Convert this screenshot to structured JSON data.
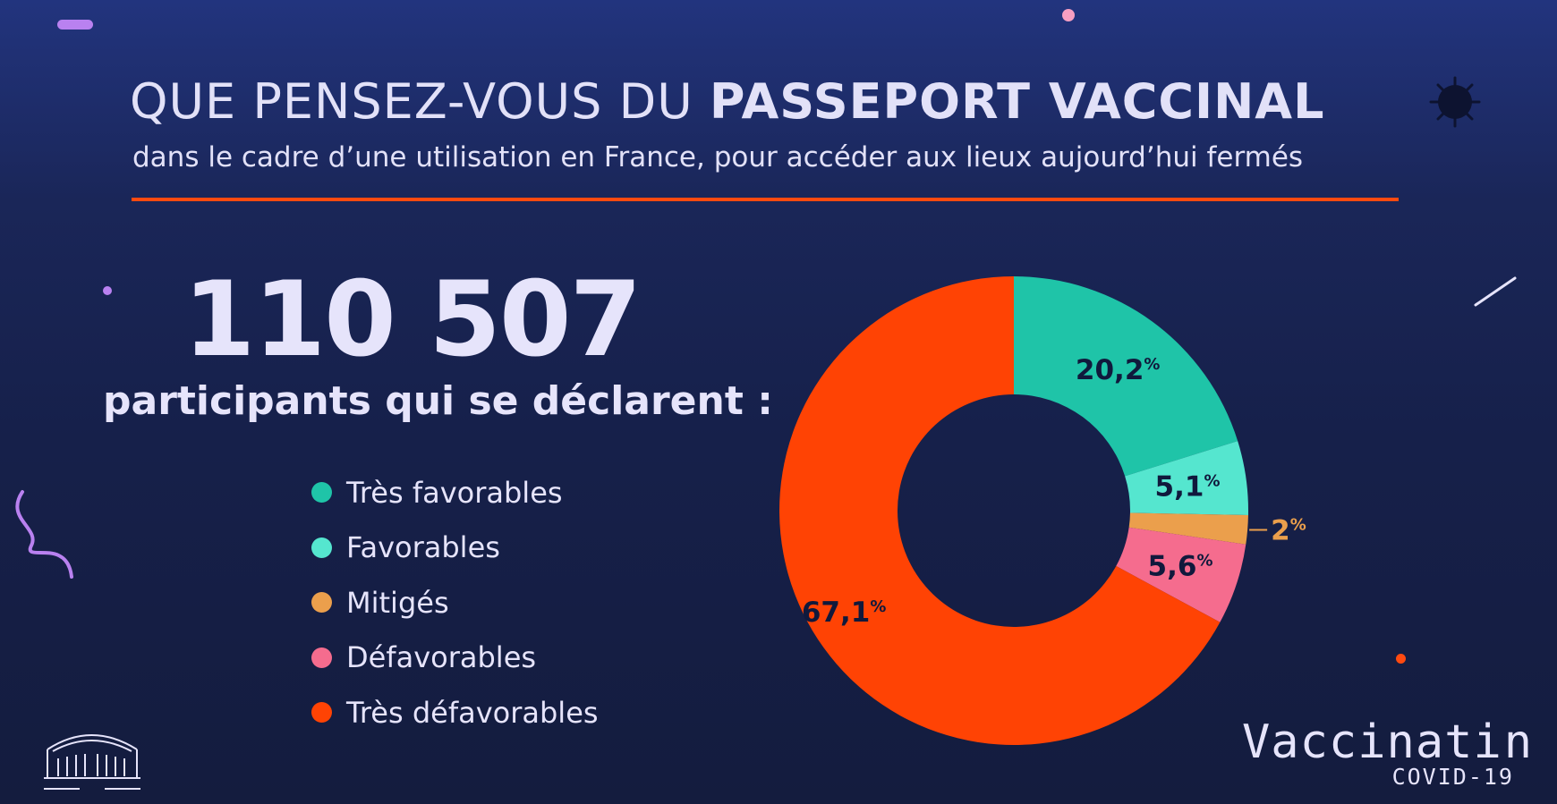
{
  "header": {
    "title_normal": "QUE PENSEZ-VOUS DU ",
    "title_bold": "PASSEPORT VACCINAL",
    "subtitle": "dans le cadre d’une utilisation en France, pour accéder aux lieux aujourd’hui fermés"
  },
  "stats": {
    "participants": "110 507",
    "declare_label": "participants qui se déclarent :"
  },
  "branding": {
    "word_start": "Vaccinati",
    "word_end": "n",
    "sub": "COVID-19"
  },
  "colors": {
    "accent": "#ff4a10",
    "background": "#141c3e",
    "text": "#e6e4fb"
  },
  "chart_data": {
    "type": "pie",
    "donut": true,
    "categories": [
      "Très favorables",
      "Favorables",
      "Mitigés",
      "Défavorables",
      "Très défavorables"
    ],
    "values": [
      20.2,
      5.1,
      2,
      5.6,
      67.1
    ],
    "labels": [
      "20,2",
      "5,1",
      "2",
      "5,6",
      "67,1"
    ],
    "unit": "%",
    "colors": [
      "#1fc4a8",
      "#55e6cf",
      "#eb9f4c",
      "#f56c8e",
      "#ff4304"
    ],
    "label_colors": [
      "#10193c",
      "#10193c",
      "#eb9f4c",
      "#10193c",
      "#10193c"
    ]
  }
}
